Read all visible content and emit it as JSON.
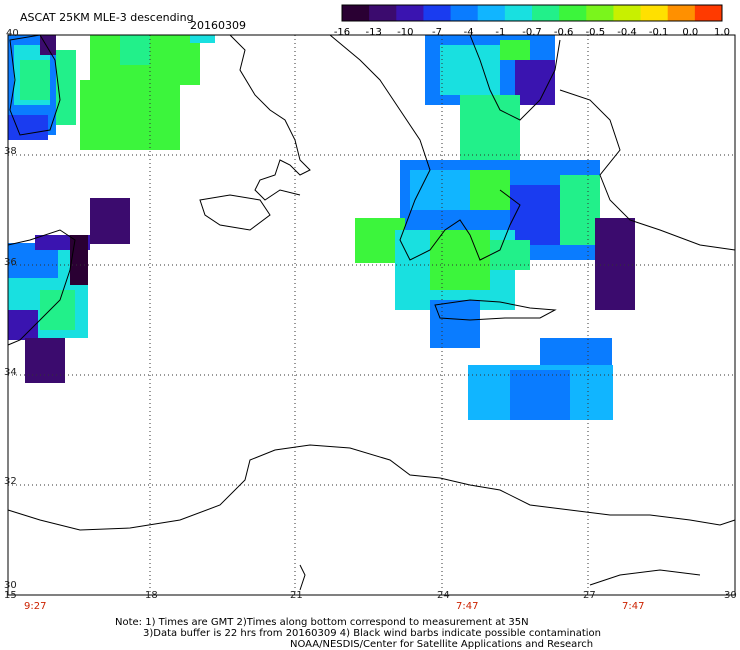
{
  "header": {
    "title": "ASCAT 25KM MLE-3 descending",
    "date": "20160309"
  },
  "colorbar": {
    "labels": [
      "-16",
      "-13",
      "-10",
      "-7",
      "-4",
      "-1",
      "-0.7",
      "-0.6",
      "-0.5",
      "-0.4",
      "-0.1",
      "0.0",
      "1.0"
    ],
    "colors": [
      "#2a0033",
      "#3b0b6e",
      "#3a14b0",
      "#1a3cf0",
      "#0a7cff",
      "#11b5ff",
      "#19e0e0",
      "#22f08a",
      "#3cf53c",
      "#7af51c",
      "#c8f000",
      "#ffe000",
      "#ff9000",
      "#ff3a00"
    ]
  },
  "axes": {
    "lat_labels": [
      "40",
      "38",
      "36",
      "34",
      "32",
      "30"
    ],
    "lon_labels": [
      "15",
      "18",
      "21",
      "24",
      "27",
      "30"
    ],
    "time_labels": [
      "9:27",
      "7:47",
      "7:47"
    ]
  },
  "notes": {
    "line1": "Note: 1) Times are GMT 2)Times along bottom correspond to measurement at 35N",
    "line2": "3)Data buffer is 22 hrs from 20160309 4) Black wind barbs indicate possible contamination",
    "line3": "NOAA/NESDIS/Center for Satellite Applications and Research"
  }
}
